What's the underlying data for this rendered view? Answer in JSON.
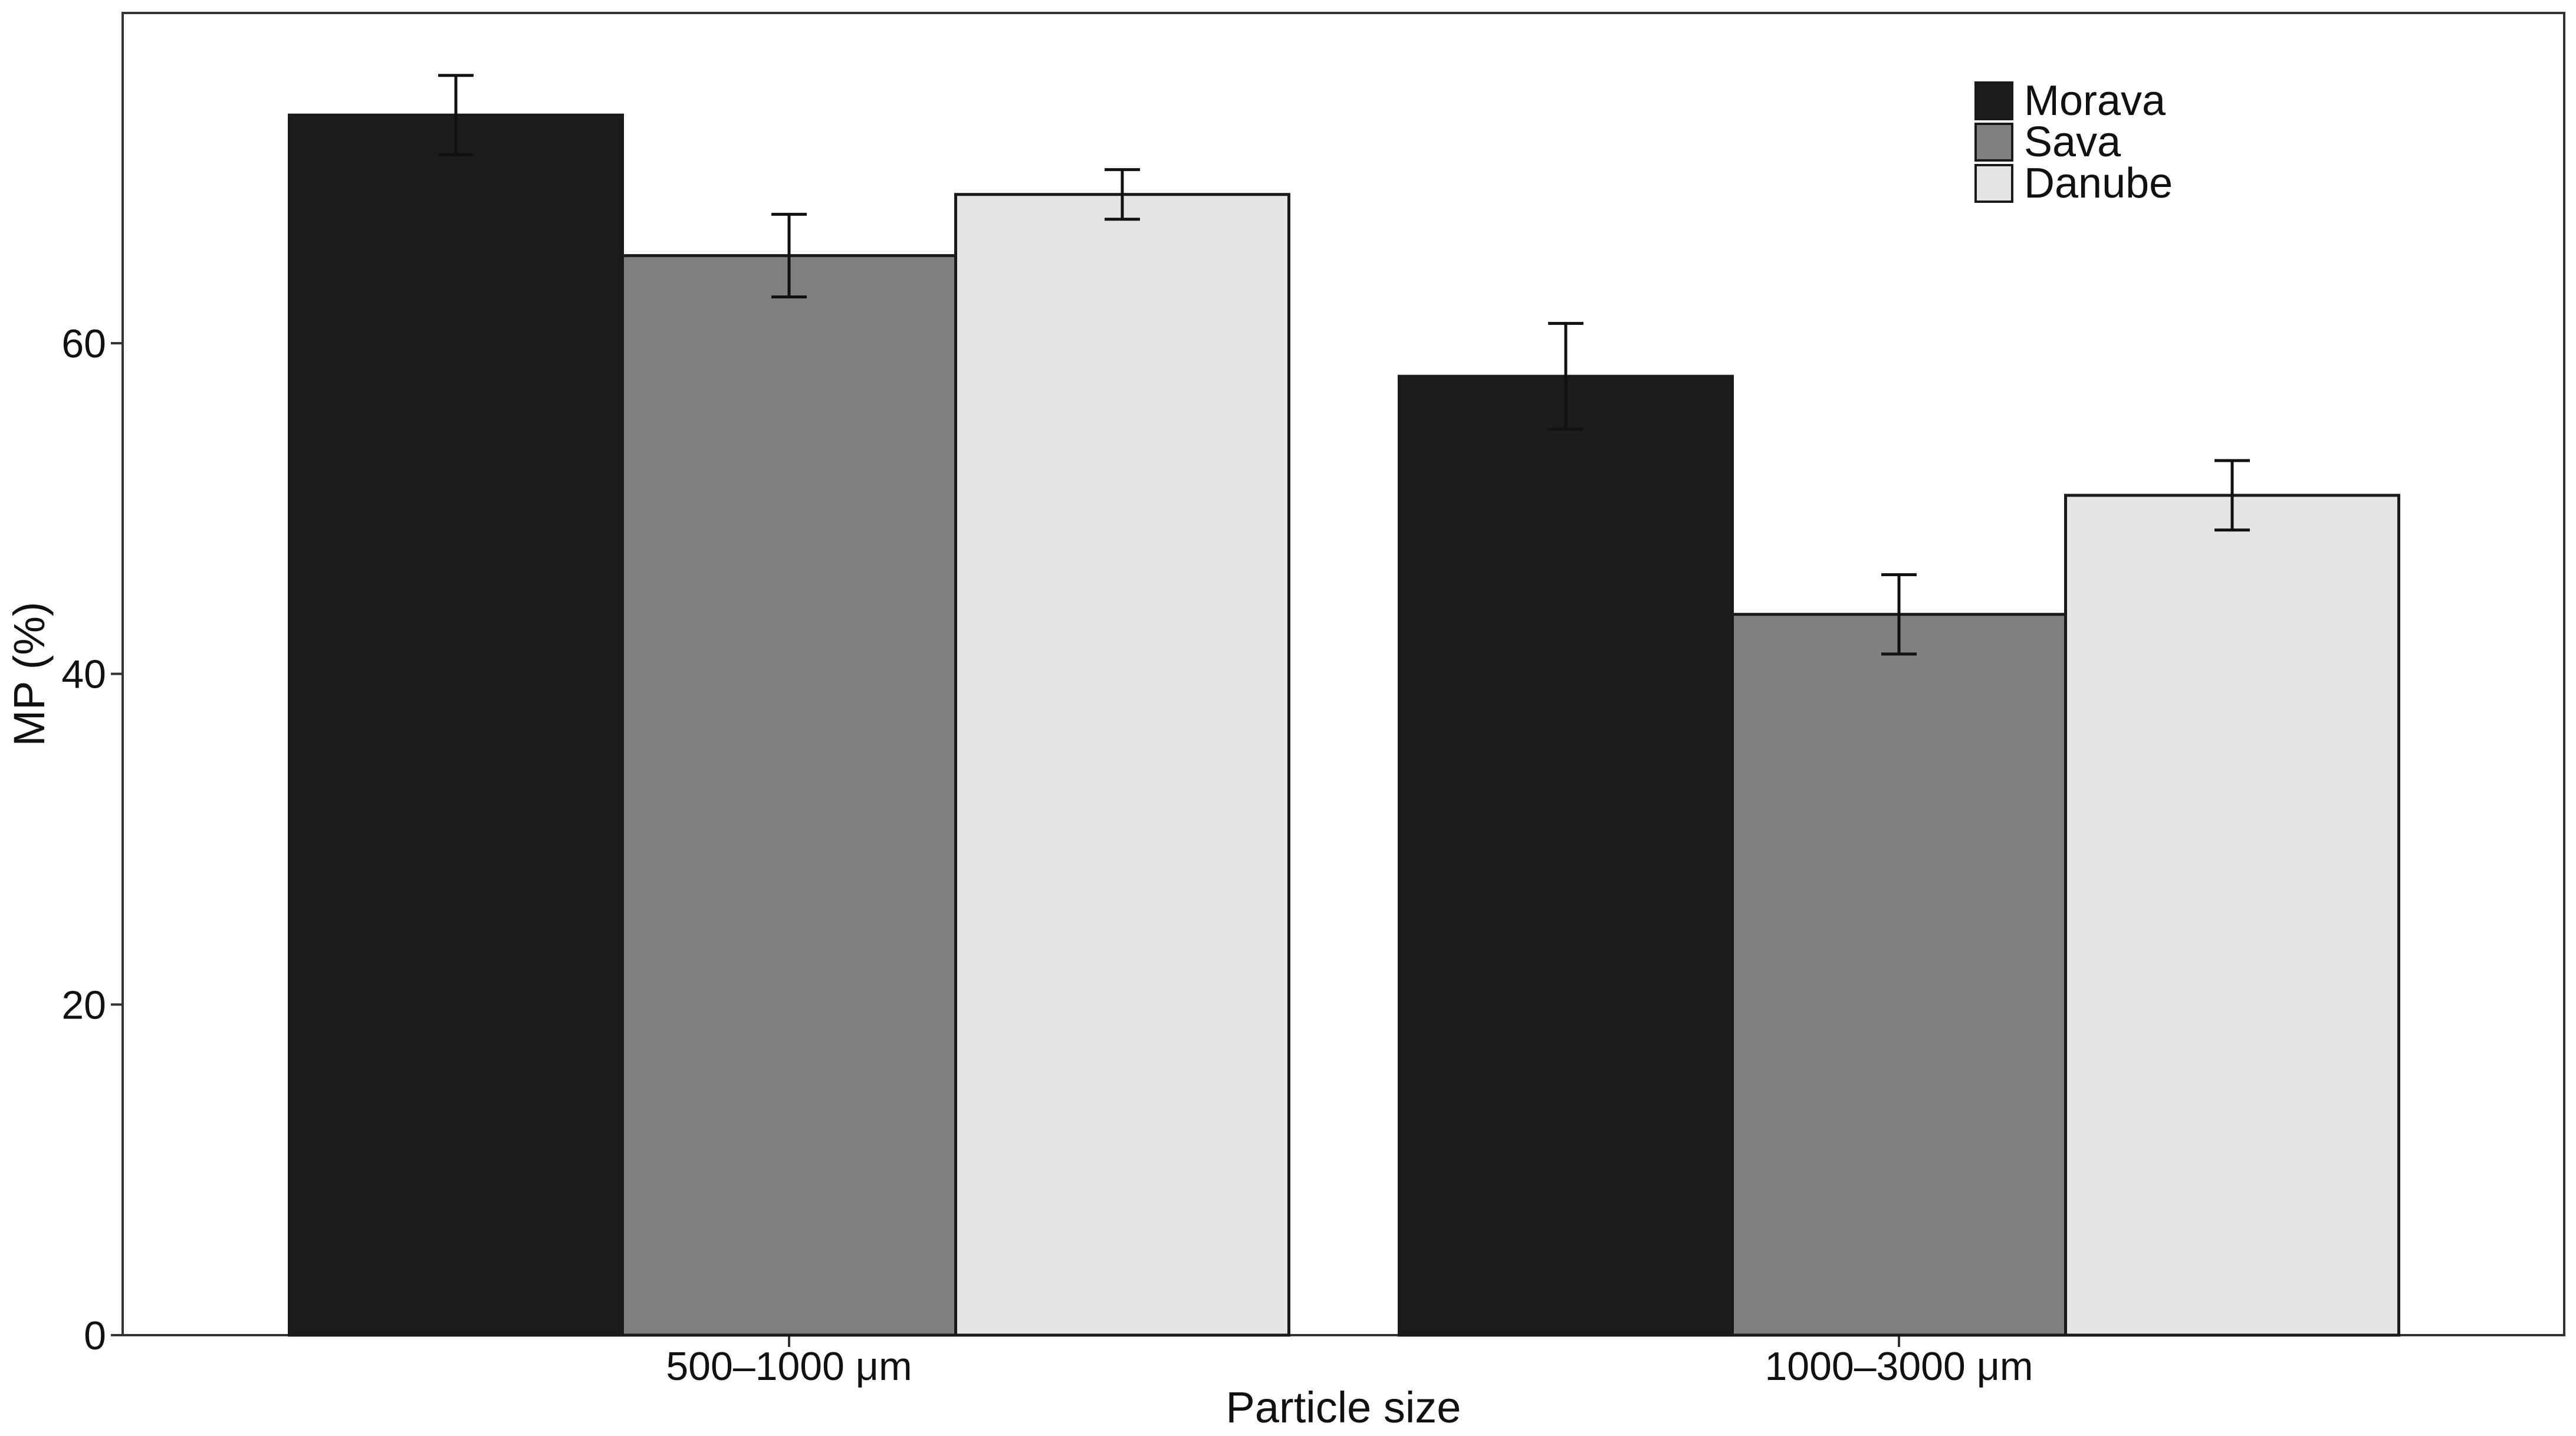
{
  "chart_data": {
    "type": "bar",
    "title": "",
    "xlabel": "Particle size",
    "ylabel": "MP (%)",
    "ylim": [
      0,
      80
    ],
    "yticks": [
      0,
      20,
      40,
      60
    ],
    "grid": false,
    "legend_position": "top-right",
    "categories": [
      "500–1000 μm",
      "1000–3000 μm"
    ],
    "series": [
      {
        "name": "Morava",
        "color": "#1c1c1c",
        "values": [
          73.8,
          58.0
        ],
        "errors": [
          2.4,
          3.2
        ]
      },
      {
        "name": "Sava",
        "color": "#808080",
        "values": [
          65.3,
          43.6
        ],
        "errors": [
          2.5,
          2.4
        ]
      },
      {
        "name": "Danube",
        "color": "#e4e4e4",
        "values": [
          69.0,
          50.8
        ],
        "errors": [
          1.5,
          2.1
        ]
      }
    ]
  }
}
